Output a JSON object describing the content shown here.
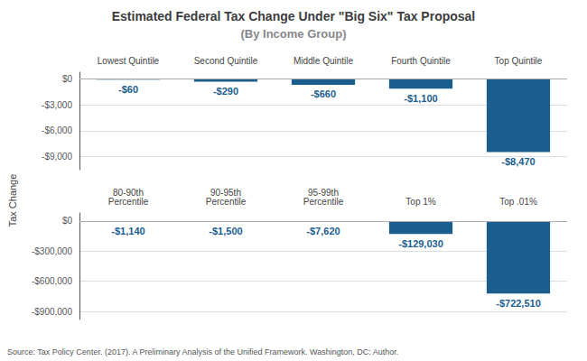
{
  "chart_data": [
    {
      "type": "bar",
      "title": "Estimated Federal Tax Change Under \"Big Six\" Tax Proposal",
      "subtitle": "(By Income Group)",
      "ylabel": "Tax Change",
      "annotation": "Source: Tax Policy Center. (2017). A Preliminary Analysis of the Unified Framework. Washington, DC: Author.",
      "categories": [
        "Lowest Quintile",
        "Second Quintile",
        "Middle Quintile",
        "Fourth Quintile",
        "Top Quintile"
      ],
      "values": [
        -60,
        -290,
        -660,
        -1100,
        -8470
      ],
      "value_labels": [
        "-$60",
        "-$290",
        "-$660",
        "-$1,100",
        "-$8,470"
      ],
      "data_labels": true,
      "color": "#1b5e8e",
      "ylim": [
        -10500,
        800
      ],
      "yticks": [
        {
          "value": 0,
          "label": "$0"
        },
        {
          "value": -3000,
          "label": "-$3,000"
        },
        {
          "value": -6000,
          "label": "-$6,000"
        },
        {
          "value": -9000,
          "label": "-$9,000"
        }
      ],
      "grid": true
    },
    {
      "type": "bar",
      "categories": [
        "80-90th\nPercentile",
        "90-95th\nPercentile",
        "95-99th\nPercentile",
        "Top 1%",
        "Top .01%"
      ],
      "values": [
        -1140,
        -1500,
        -7620,
        -129030,
        -722510
      ],
      "value_labels": [
        "-$1,140",
        "-$1,500",
        "-$7,620",
        "-$129,030",
        "-$722,510"
      ],
      "data_labels": true,
      "color": "#1b5e8e",
      "ylim": [
        -980000,
        80000
      ],
      "yticks": [
        {
          "value": 0,
          "label": "$0"
        },
        {
          "value": -300000,
          "label": "-$300,000"
        },
        {
          "value": -600000,
          "label": "-$600,000"
        },
        {
          "value": -900000,
          "label": "-$900,000"
        }
      ],
      "grid": true
    }
  ]
}
